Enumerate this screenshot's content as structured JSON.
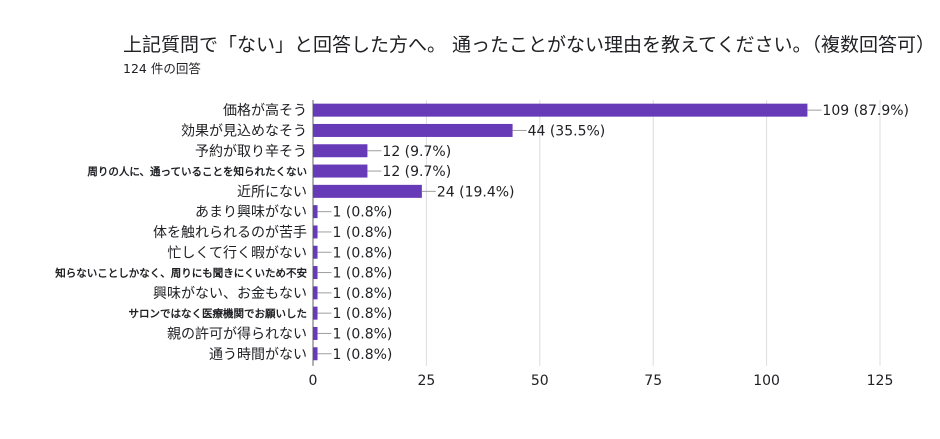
{
  "title": "上記質問で「ない」と回答した方へ。 通ったことがない理由を教えてください。（複数回答可）",
  "subtitle": "124 件の回答",
  "colors": {
    "bar": "#673ab7",
    "grid": "#dadce0",
    "axis": "#5f6368",
    "leader": "#9e9e9e"
  },
  "chart_data": {
    "type": "bar",
    "orientation": "horizontal",
    "title": "上記質問で「ない」と回答した方へ。 通ったことがない理由を教えてください。（複数回答可）",
    "subtitle": "124 件の回答",
    "categories": [
      "価格が高そう",
      "効果が見込めなそう",
      "予約が取り辛そう",
      "周りの人に、通っていることを知られたくない",
      "近所にない",
      "あまり興味がない",
      "体を触れられるのが苦手",
      "忙しくて行く暇がない",
      "知らないことしかなく、周りにも聞きにくいため不安",
      "興味がない、お金もない",
      "サロンではなく医療機関でお願いした",
      "親の許可が得られない",
      "通う時間がない"
    ],
    "small_label_flags": [
      false,
      false,
      false,
      true,
      false,
      false,
      false,
      false,
      true,
      false,
      true,
      false,
      false
    ],
    "values": [
      109,
      44,
      12,
      12,
      24,
      1,
      1,
      1,
      1,
      1,
      1,
      1,
      1
    ],
    "data_labels": [
      "109 (87.9%)",
      "44 (35.5%)",
      "12 (9.7%)",
      "12 (9.7%)",
      "24 (19.4%)",
      "1 (0.8%)",
      "1 (0.8%)",
      "1 (0.8%)",
      "1 (0.8%)",
      "1 (0.8%)",
      "1 (0.8%)",
      "1 (0.8%)",
      "1 (0.8%)"
    ],
    "xlim": [
      0,
      125
    ],
    "xticks": [
      0,
      25,
      50,
      75,
      100,
      125
    ],
    "xlabel": "",
    "ylabel": "",
    "grid": true
  }
}
